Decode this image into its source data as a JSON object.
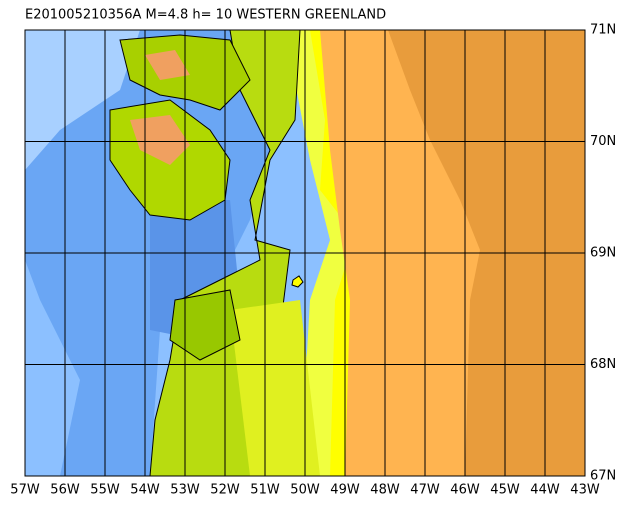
{
  "map": {
    "title": "E201005210356A M=4.8 h= 10 WESTERN GREENLAND",
    "xlim": [
      -57,
      -43
    ],
    "ylim": [
      67,
      71
    ],
    "xticks": [
      {
        "value": -57,
        "label": "57W"
      },
      {
        "value": -56,
        "label": "56W"
      },
      {
        "value": -55,
        "label": "55W"
      },
      {
        "value": -54,
        "label": "54W"
      },
      {
        "value": -53,
        "label": "53W"
      },
      {
        "value": -52,
        "label": "52W"
      },
      {
        "value": -51,
        "label": "51W"
      },
      {
        "value": -50,
        "label": "50W"
      },
      {
        "value": -49,
        "label": "49W"
      },
      {
        "value": -48,
        "label": "48W"
      },
      {
        "value": -47,
        "label": "47W"
      },
      {
        "value": -46,
        "label": "46W"
      },
      {
        "value": -45,
        "label": "45W"
      },
      {
        "value": -44,
        "label": "44W"
      },
      {
        "value": -43,
        "label": "43W"
      }
    ],
    "yticks": [
      {
        "value": 67,
        "label": "67N"
      },
      {
        "value": 68,
        "label": "68N"
      },
      {
        "value": 69,
        "label": "69N"
      },
      {
        "value": 70,
        "label": "70N"
      },
      {
        "value": 71,
        "label": "71N"
      }
    ]
  }
}
